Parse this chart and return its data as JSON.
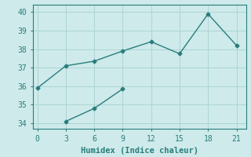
{
  "line1_x": [
    0,
    3,
    6,
    9,
    12,
    15,
    18,
    21
  ],
  "line1_y": [
    35.9,
    37.1,
    37.35,
    37.9,
    38.4,
    37.75,
    39.9,
    38.2
  ],
  "line2_x": [
    3,
    6,
    9
  ],
  "line2_y": [
    34.1,
    34.8,
    35.85
  ],
  "line_color": "#2a7d7d",
  "bg_color": "#ceeaea",
  "grid_color": "#add4d4",
  "xlabel": "Humidex (Indice chaleur)",
  "xlim": [
    -0.5,
    22
  ],
  "ylim": [
    33.7,
    40.4
  ],
  "yticks": [
    34,
    35,
    36,
    37,
    38,
    39,
    40
  ],
  "xticks": [
    0,
    3,
    6,
    9,
    12,
    15,
    18,
    21
  ],
  "xlabel_fontsize": 7.5,
  "tick_fontsize": 7,
  "marker": "D",
  "marker_size": 2.5,
  "line_width": 1.0
}
